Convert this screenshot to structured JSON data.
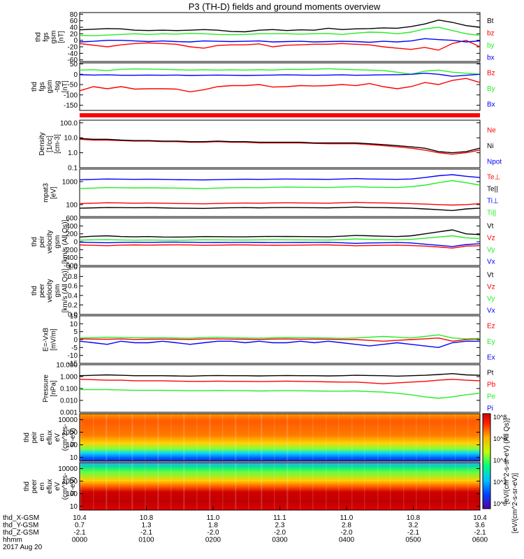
{
  "title": "P3 (TH-D) fields and ground moments overview",
  "colors": {
    "black": "#000000",
    "red": "#ff0000",
    "green": "#22ee22",
    "blue": "#0000ff"
  },
  "chart_data": [
    {
      "id": "fgs",
      "type": "line",
      "ylabel": [
        "thd",
        "fgs",
        "gsm",
        "[nT]"
      ],
      "yticks": [
        "80",
        "60",
        "40",
        "20",
        "0",
        "-20",
        "-40",
        "-60"
      ],
      "ylim": [
        -65,
        85
      ],
      "legend": [
        "Bt",
        "bz",
        "by",
        "bx"
      ],
      "series": [
        {
          "name": "Bt",
          "color": "black",
          "values": [
            32,
            34,
            36,
            35,
            31,
            30,
            31,
            30,
            31,
            33,
            31,
            27,
            26,
            31,
            33,
            30,
            32,
            31,
            37,
            33,
            35,
            36,
            38,
            37,
            42,
            50,
            62,
            55,
            45,
            40
          ]
        },
        {
          "name": "bz",
          "color": "red",
          "values": [
            -10,
            -15,
            -20,
            -14,
            -10,
            -8,
            -10,
            -12,
            -20,
            -24,
            -16,
            -14,
            -14,
            -11,
            -20,
            -15,
            -14,
            -12,
            -12,
            -10,
            -12,
            -14,
            -20,
            -24,
            -28,
            -22,
            -30,
            -10,
            0,
            -20
          ]
        },
        {
          "name": "by",
          "color": "green",
          "values": [
            15,
            14,
            16,
            18,
            20,
            18,
            20,
            19,
            21,
            20,
            18,
            17,
            18,
            20,
            20,
            20,
            19,
            20,
            21,
            18,
            22,
            25,
            24,
            20,
            25,
            35,
            40,
            30,
            20,
            15
          ]
        },
        {
          "name": "bx",
          "color": "blue",
          "values": [
            -5,
            -3,
            0,
            0,
            -2,
            -4,
            -2,
            -4,
            -5,
            -2,
            -3,
            -4,
            -3,
            -2,
            -5,
            -4,
            -3,
            -5,
            -4,
            -3,
            -4,
            -6,
            -3,
            -5,
            -2,
            5,
            2,
            0,
            -5,
            -2
          ]
        }
      ]
    },
    {
      "id": "fgs_subtract",
      "type": "line",
      "ylabel": [
        "thd",
        "fgs",
        "gsm",
        "-tsg",
        "[nT]"
      ],
      "yticks": [
        "50",
        "0",
        "-50",
        "-100",
        "-150"
      ],
      "ylim": [
        -175,
        55
      ],
      "legend": [
        "Bz",
        "By",
        "Bx"
      ],
      "series": [
        {
          "name": "Bz",
          "color": "red",
          "values": [
            -80,
            -60,
            -70,
            -60,
            -72,
            -70,
            -70,
            -72,
            -85,
            -75,
            -60,
            -55,
            -55,
            -50,
            -62,
            -60,
            -55,
            -57,
            -55,
            -50,
            -55,
            -45,
            -60,
            -70,
            -60,
            -40,
            -50,
            -30,
            -20,
            -40
          ]
        },
        {
          "name": "By",
          "color": "green",
          "values": [
            20,
            22,
            18,
            24,
            26,
            25,
            24,
            22,
            20,
            22,
            20,
            22,
            20,
            22,
            20,
            24,
            23,
            25,
            27,
            24,
            22,
            20,
            18,
            10,
            0,
            15,
            20,
            10,
            5,
            0
          ]
        },
        {
          "name": "Bx",
          "color": "blue",
          "values": [
            -2,
            -4,
            -3,
            -5,
            -5,
            -4,
            -5,
            -4,
            -6,
            -5,
            -4,
            -5,
            -6,
            -5,
            -4,
            -3,
            -4,
            -5,
            -4,
            -3,
            -5,
            -4,
            -3,
            -2,
            0,
            5,
            0,
            -10,
            -5,
            0
          ]
        }
      ]
    },
    {
      "id": "density",
      "type": "line",
      "scale": "log",
      "ylabel": [
        "Density",
        "[1/cc]",
        "[cm-3]"
      ],
      "yticks": [
        "100.0",
        "10.0",
        "1.0",
        "0.1"
      ],
      "ylim": [
        0.1,
        150
      ],
      "legend": [
        "Ne",
        "Ni",
        "Npot"
      ],
      "series": [
        {
          "name": "Ne",
          "color": "red",
          "values": [
            8,
            7,
            7,
            6.5,
            6,
            6,
            5.5,
            5.5,
            5,
            5,
            5.5,
            5,
            5,
            4.5,
            4.5,
            4.5,
            4.5,
            4.2,
            4,
            4,
            4,
            3.5,
            3,
            2.5,
            2,
            1.5,
            1,
            0.8,
            1,
            1.5
          ]
        },
        {
          "name": "Ni",
          "color": "black",
          "values": [
            9,
            8,
            8,
            7,
            6.5,
            6.5,
            6,
            6,
            5.5,
            5.5,
            6,
            5.5,
            5.5,
            5,
            5,
            5,
            5,
            4.5,
            4.5,
            4.5,
            4.5,
            4,
            3.5,
            3,
            2.5,
            2,
            1.2,
            1,
            1.2,
            2
          ]
        },
        {
          "name": "Npot",
          "color": "blue",
          "values": []
        }
      ]
    },
    {
      "id": "temperature",
      "type": "line",
      "scale": "log",
      "ylabel": [
        "mpat3",
        "[eV]"
      ],
      "yticks": [
        "1000",
        "100"
      ],
      "ylim": [
        30,
        3500
      ],
      "legend": [
        "Te⊥",
        "Te||",
        "Ti⊥",
        "Ti||"
      ],
      "series": [
        {
          "name": "Te⊥",
          "color": "red",
          "values": [
            110,
            115,
            120,
            118,
            115,
            117,
            115,
            112,
            110,
            108,
            112,
            115,
            117,
            115,
            118,
            120,
            118,
            117,
            115,
            120,
            125,
            120,
            118,
            115,
            110,
            105,
            100,
            95,
            100,
            110
          ]
        },
        {
          "name": "Te||",
          "color": "black",
          "values": [
            70,
            72,
            75,
            74,
            73,
            74,
            72,
            70,
            69,
            68,
            71,
            73,
            74,
            72,
            74,
            75,
            74,
            73,
            72,
            75,
            78,
            75,
            74,
            72,
            70,
            65,
            60,
            55,
            65,
            70
          ]
        },
        {
          "name": "Ti⊥",
          "color": "blue",
          "values": [
            1200,
            1250,
            1300,
            1280,
            1250,
            1270,
            1250,
            1220,
            1200,
            1180,
            1220,
            1250,
            1270,
            1250,
            1280,
            1300,
            1280,
            1270,
            1250,
            1300,
            1350,
            1300,
            1280,
            1250,
            1300,
            1500,
            1800,
            2000,
            1700,
            1500
          ]
        },
        {
          "name": "Ti||",
          "color": "green",
          "values": [
            500,
            520,
            550,
            540,
            530,
            540,
            530,
            520,
            510,
            500,
            520,
            540,
            550,
            540,
            560,
            580,
            570,
            560,
            550,
            580,
            600,
            570,
            560,
            550,
            600,
            700,
            900,
            1100,
            900,
            700
          ]
        }
      ]
    },
    {
      "id": "peir_velocity",
      "type": "line",
      "ylabel": [
        "thd",
        "peir",
        "velocity",
        "gsm",
        "[km/s (All Qs)]"
      ],
      "yticks": [
        "600",
        "400",
        "200",
        "0",
        "-200",
        "-400",
        "-600"
      ],
      "ylim": [
        -600,
        600
      ],
      "legend": [
        "Vt",
        "Vz",
        "Vy",
        "Vx"
      ],
      "series": [
        {
          "name": "Vt",
          "color": "black",
          "values": [
            120,
            140,
            150,
            130,
            125,
            130,
            120,
            118,
            122,
            130,
            128,
            126,
            125,
            130,
            135,
            132,
            130,
            128,
            125,
            140,
            160,
            150,
            140,
            130,
            150,
            200,
            250,
            300,
            200,
            180
          ]
        },
        {
          "name": "Vz",
          "color": "red",
          "values": [
            -80,
            -90,
            -100,
            -85,
            -80,
            -85,
            -80,
            -78,
            -82,
            -90,
            -85,
            -80,
            -80,
            -85,
            -88,
            -86,
            -84,
            -82,
            -80,
            -90,
            -100,
            -95,
            -90,
            -85,
            -95,
            -110,
            -130,
            -160,
            -110,
            -100
          ]
        },
        {
          "name": "Vy",
          "color": "green",
          "values": [
            40,
            50,
            55,
            45,
            40,
            45,
            40,
            38,
            42,
            50,
            48,
            45,
            44,
            48,
            52,
            50,
            48,
            46,
            44,
            55,
            70,
            60,
            55,
            50,
            60,
            90,
            120,
            150,
            100,
            80
          ]
        },
        {
          "name": "Vx",
          "color": "blue",
          "values": [
            -10,
            -20,
            -25,
            -15,
            -12,
            -15,
            -10,
            -8,
            -12,
            -20,
            -18,
            -15,
            -14,
            -18,
            -22,
            -20,
            -18,
            -16,
            -14,
            -25,
            -40,
            -30,
            -25,
            -20,
            -30,
            -60,
            -90,
            -120,
            -70,
            -50
          ]
        }
      ]
    },
    {
      "id": "peer_velocity",
      "type": "line",
      "ylabel": [
        "thd",
        "peer",
        "velocity",
        "gsm",
        "[km/s (All Qs)]"
      ],
      "yticks": [
        "1.0",
        "0.8",
        "0.6",
        "0.4",
        "0.2",
        "0.0"
      ],
      "ylim": [
        0,
        1
      ],
      "legend": [
        "Vt",
        "Vz",
        "Vy",
        "Vx"
      ],
      "series": []
    },
    {
      "id": "efield",
      "type": "line",
      "ylabel": [
        "E=-VxB",
        "[mV/m]"
      ],
      "yticks": [
        "15",
        "10",
        "5",
        "0",
        "-5",
        "-10",
        "-15"
      ],
      "ylim": [
        -15,
        15
      ],
      "legend": [
        "Ez",
        "Ey",
        "Ex"
      ],
      "series": [
        {
          "name": "Ez",
          "color": "red",
          "values": [
            0.5,
            0.3,
            0.2,
            0.4,
            0.1,
            0.2,
            0.3,
            0.2,
            0.1,
            0.4,
            0.5,
            0.3,
            0.2,
            0.1,
            0.3,
            0.4,
            0.2,
            0.3,
            0.2,
            0.1,
            0.0,
            -0.5,
            -1,
            -0.5,
            0,
            0.5,
            1,
            -1,
            0,
            0.5
          ]
        },
        {
          "name": "Ey",
          "color": "green",
          "values": [
            1,
            1.2,
            1.5,
            1.3,
            1.2,
            1.1,
            1.2,
            1.0,
            0.9,
            1.3,
            1.5,
            1.2,
            1.0,
            0.9,
            1.1,
            1.3,
            1.2,
            1.1,
            1.0,
            0.8,
            1.0,
            1.5,
            2,
            1.5,
            1.0,
            2,
            3,
            1,
            0.5,
            0.8
          ]
        },
        {
          "name": "Ex",
          "color": "blue",
          "values": [
            -1,
            -2,
            -3,
            -1,
            -2,
            -2,
            -1,
            -2,
            -3,
            -2,
            -1,
            -1,
            -2,
            -1,
            -2,
            -2,
            -1,
            -2,
            -1,
            -2,
            -3,
            -4,
            -3,
            -2,
            -3,
            -4,
            -5,
            -2,
            -1,
            -1
          ]
        }
      ]
    },
    {
      "id": "pressure",
      "type": "line",
      "scale": "log",
      "ylabel": [
        "Pressure",
        "[nPa]"
      ],
      "yticks": [
        "10.000",
        "1.000",
        "0.100",
        "0.010",
        "0.001"
      ],
      "ylim": [
        0.001,
        10
      ],
      "legend": [
        "Pt",
        "Pb",
        "Pe",
        "Pi"
      ],
      "series": [
        {
          "name": "Pt",
          "color": "black",
          "values": [
            1.2,
            1.3,
            1.4,
            1.3,
            1.2,
            1.2,
            1.2,
            1.15,
            1.1,
            1.2,
            1.25,
            1.2,
            1.2,
            1.15,
            1.2,
            1.25,
            1.2,
            1.2,
            1.15,
            1.2,
            1.3,
            1.25,
            1.2,
            1.1,
            1.2,
            1.3,
            1.5,
            1.8,
            1.4,
            1.3
          ]
        },
        {
          "name": "Pb",
          "color": "red",
          "values": [
            0.6,
            0.55,
            0.5,
            0.5,
            0.45,
            0.45,
            0.45,
            0.42,
            0.4,
            0.4,
            0.42,
            0.4,
            0.4,
            0.38,
            0.4,
            0.42,
            0.4,
            0.38,
            0.36,
            0.35,
            0.35,
            0.3,
            0.25,
            0.3,
            0.35,
            0.4,
            0.5,
            0.6,
            0.5,
            0.45
          ]
        },
        {
          "name": "Pe",
          "color": "green",
          "values": [
            0.08,
            0.08,
            0.08,
            0.075,
            0.07,
            0.07,
            0.07,
            0.068,
            0.065,
            0.065,
            0.068,
            0.066,
            0.065,
            0.062,
            0.064,
            0.066,
            0.064,
            0.062,
            0.06,
            0.06,
            0.062,
            0.055,
            0.05,
            0.04,
            0.03,
            0.02,
            0.015,
            0.02,
            0.03,
            0.04
          ]
        },
        {
          "name": "Pi",
          "color": "blue",
          "values": []
        }
      ]
    },
    {
      "id": "peir_spec",
      "type": "heatmap",
      "ylabel": [
        "thd",
        "peir",
        "en",
        "eflux",
        "eV",
        "(cm^2-s-",
        "sr-eV)"
      ],
      "yticks": [
        "10000",
        "1000",
        "100",
        "10"
      ],
      "scale": "log",
      "ylim": [
        5,
        30000
      ]
    },
    {
      "id": "peer_spec",
      "type": "heatmap",
      "ylabel": [
        "thd",
        "peer",
        "en",
        "eflux",
        "eV",
        "(cm^2-s-",
        "sr-eV)"
      ],
      "yticks": [
        "10000",
        "1000",
        "100",
        "10"
      ],
      "scale": "log",
      "ylim": [
        5,
        30000
      ]
    }
  ],
  "colorbar": {
    "label": "[eV/(cm^2-s-sr-eV)]",
    "label2": "[eV/(cm^2-s-sr-eV) (All Qs)]",
    "ticks": [
      "10^8",
      "10^6",
      "10^4",
      "10^2",
      "10^0"
    ]
  },
  "xaxis": {
    "rows": [
      {
        "label": "thd_X-GSM",
        "values": [
          "10.4",
          "10.8",
          "11.0",
          "11.1",
          "11.0",
          "10.8",
          "10.4"
        ]
      },
      {
        "label": "thd_Y-GSM",
        "values": [
          "0.7",
          "1.3",
          "1.8",
          "2.3",
          "2.8",
          "3.2",
          "3.6"
        ]
      },
      {
        "label": "thd_Z-GSM",
        "values": [
          "-2.1",
          "-2.1",
          "-2.0",
          "-2.0",
          "-2.0",
          "-2.1",
          "-2.1"
        ]
      },
      {
        "label": "hhmm",
        "values": [
          "0000",
          "0100",
          "0200",
          "0300",
          "0400",
          "0500",
          "0600"
        ]
      }
    ],
    "date": "2017 Aug 20"
  }
}
